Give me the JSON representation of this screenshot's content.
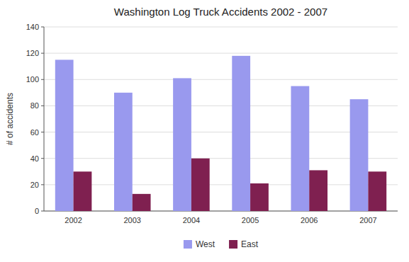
{
  "chart_data": {
    "type": "bar",
    "title": "Washington Log Truck Accidents 2002 - 2007",
    "ylabel": "# of accidents",
    "categories": [
      "2002",
      "2003",
      "2004",
      "2005",
      "2006",
      "2007"
    ],
    "series": [
      {
        "name": "West",
        "color": "#9999ee",
        "values": [
          115,
          90,
          101,
          118,
          95,
          85
        ]
      },
      {
        "name": "East",
        "color": "#7f2050",
        "values": [
          30,
          13,
          40,
          21,
          31,
          30
        ]
      }
    ],
    "ylim": [
      0,
      140
    ],
    "yticks": [
      0,
      20,
      40,
      60,
      80,
      100,
      120,
      140
    ],
    "grid": true,
    "legend": "bottom"
  }
}
